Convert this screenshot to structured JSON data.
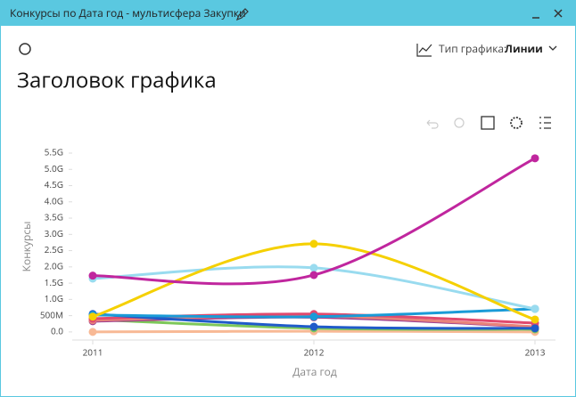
{
  "window": {
    "title": "Конкурсы по Дата год - мультисфера Закупки"
  },
  "toolbar": {
    "chart_type_label": "Тип графика:",
    "chart_type_value": "Линии"
  },
  "chart_data": {
    "type": "line",
    "title": "Заголовок графика",
    "x_label": "Дата год",
    "y_label": "Конкурсы",
    "categories": [
      "2011",
      "2012",
      "2013"
    ],
    "ylim": [
      -250000000,
      5500000000
    ],
    "yticks": [
      {
        "value": 0,
        "label": "0.0"
      },
      {
        "value": 500000000,
        "label": "500M"
      },
      {
        "value": 1000000000,
        "label": "1.0G"
      },
      {
        "value": 1500000000,
        "label": "1.5G"
      },
      {
        "value": 2000000000,
        "label": "2.0G"
      },
      {
        "value": 2500000000,
        "label": "2.5G"
      },
      {
        "value": 3000000000,
        "label": "3.0G"
      },
      {
        "value": 3500000000,
        "label": "3.5G"
      },
      {
        "value": 4000000000,
        "label": "4.0G"
      },
      {
        "value": 4500000000,
        "label": "4.5G"
      },
      {
        "value": 5000000000,
        "label": "5.0G"
      },
      {
        "value": 5500000000,
        "label": "5.5G"
      }
    ],
    "series": [
      {
        "color": "#f8b995",
        "values": [
          0,
          20000000,
          0
        ]
      },
      {
        "color": "#7dc85a",
        "values": [
          380000000,
          110000000,
          80000000
        ]
      },
      {
        "color": "#a0418f",
        "values": [
          330000000,
          450000000,
          150000000
        ]
      },
      {
        "color": "#e8837a",
        "values": [
          360000000,
          490000000,
          160000000
        ]
      },
      {
        "color": "#e04a6e",
        "values": [
          410000000,
          550000000,
          270000000
        ]
      },
      {
        "color": "#1f5bc9",
        "values": [
          550000000,
          160000000,
          110000000
        ]
      },
      {
        "color": "#1a9bd7",
        "values": [
          520000000,
          470000000,
          710000000
        ]
      },
      {
        "color": "#99dbef",
        "values": [
          1640000000,
          1970000000,
          710000000
        ]
      },
      {
        "color": "#f5d000",
        "values": [
          470000000,
          2710000000,
          380000000
        ]
      },
      {
        "color": "#c0269e",
        "values": [
          1730000000,
          1750000000,
          5340000000
        ]
      }
    ]
  }
}
